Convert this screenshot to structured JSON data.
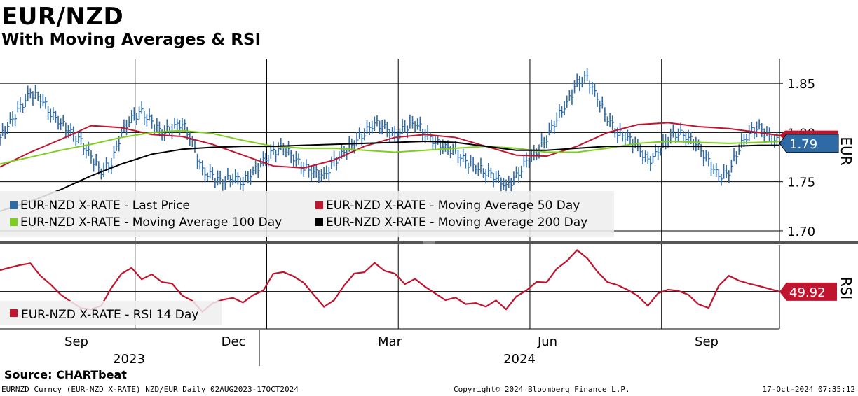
{
  "header": {
    "title": "EUR/NZD",
    "subtitle": "With Moving Averages & RSI"
  },
  "source": "Source: CHARTbeat",
  "footer": {
    "left": "EURNZD Curncy (EUR-NZD X-RATE) NZD/EUR  Daily 02AUG2023-17OCT2024",
    "middle": "Copyright© 2024 Bloomberg Finance L.P.",
    "right": "17-Oct-2024 07:35:12"
  },
  "colors": {
    "price": "#2e6aa5",
    "ma50": "#c0152f",
    "ma100": "#7dce1e",
    "ma200": "#000000",
    "rsi": "#c0152f",
    "legend_bg": "#eeeeee",
    "divider": "#555555"
  },
  "chart_data": [
    {
      "type": "line",
      "title": "EUR-NZD price panel",
      "y_axis_label": "EUR",
      "ylim": [
        1.69,
        1.875
      ],
      "y_ticks": [
        1.7,
        1.75,
        1.8,
        1.85
      ],
      "y_tick_labels": [
        "1.70",
        "1.75",
        "1.80",
        "1.85"
      ],
      "x_month_labels": [
        "Sep",
        "Dec",
        "Mar",
        "Jun",
        "Sep"
      ],
      "x_year_labels": [
        "2023",
        "2024"
      ],
      "x_range_days": [
        0,
        77
      ],
      "x_month_positions_days": [
        0,
        13,
        26,
        39,
        52,
        65
      ],
      "last_value_tags": [
        {
          "series": "Moving Average 50 Day",
          "label": "",
          "value": 1.797
        },
        {
          "series": "Last Price",
          "label": "1.79",
          "value": 1.789
        }
      ],
      "series": [
        {
          "name": "EUR-NZD X-RATE - Last Price",
          "legend": "EUR-NZD X-RATE - Last Price",
          "style": "ohlc-bars",
          "x": [
            0,
            1,
            2,
            3,
            4,
            5,
            6,
            7,
            8,
            9,
            10,
            11,
            12,
            13,
            14,
            15,
            16,
            17,
            18,
            19,
            20,
            21,
            22,
            23,
            24,
            25,
            26,
            27,
            28,
            29,
            30,
            31,
            32,
            33,
            34,
            35,
            36,
            37,
            38,
            39,
            40,
            41,
            42,
            43,
            44,
            45,
            46,
            47,
            48,
            49,
            50,
            51,
            52,
            53,
            54,
            55,
            56,
            57,
            58,
            59,
            60,
            61,
            62,
            63,
            64,
            65,
            66,
            67,
            68,
            69,
            70,
            71,
            72,
            73,
            74,
            75,
            76,
            77
          ],
          "values": [
            1.795,
            1.81,
            1.825,
            1.84,
            1.835,
            1.82,
            1.81,
            1.8,
            1.79,
            1.775,
            1.76,
            1.77,
            1.8,
            1.815,
            1.82,
            1.81,
            1.8,
            1.805,
            1.81,
            1.79,
            1.76,
            1.755,
            1.75,
            1.755,
            1.75,
            1.76,
            1.77,
            1.78,
            1.785,
            1.775,
            1.765,
            1.76,
            1.755,
            1.77,
            1.78,
            1.79,
            1.8,
            1.81,
            1.805,
            1.795,
            1.805,
            1.81,
            1.8,
            1.79,
            1.785,
            1.78,
            1.77,
            1.765,
            1.76,
            1.755,
            1.745,
            1.755,
            1.77,
            1.78,
            1.795,
            1.815,
            1.83,
            1.85,
            1.855,
            1.835,
            1.815,
            1.8,
            1.795,
            1.785,
            1.77,
            1.78,
            1.795,
            1.8,
            1.795,
            1.785,
            1.77,
            1.755,
            1.76,
            1.785,
            1.8,
            1.805,
            1.795,
            1.79
          ]
        },
        {
          "name": "EUR-NZD X-RATE - Moving Average 50 Day",
          "legend": "EUR-NZD X-RATE - Moving Average 50 Day",
          "style": "line",
          "x": [
            0,
            3,
            6,
            9,
            12,
            15,
            18,
            21,
            24,
            27,
            30,
            33,
            36,
            39,
            42,
            45,
            48,
            51,
            54,
            57,
            60,
            63,
            66,
            69,
            72,
            75,
            77
          ],
          "values": [
            1.765,
            1.78,
            1.793,
            1.807,
            1.805,
            1.798,
            1.796,
            1.788,
            1.777,
            1.766,
            1.764,
            1.772,
            1.786,
            1.795,
            1.798,
            1.795,
            1.786,
            1.777,
            1.776,
            1.786,
            1.8,
            1.808,
            1.81,
            1.806,
            1.804,
            1.8,
            1.797
          ]
        },
        {
          "name": "EUR-NZD X-RATE - Moving Average 100 Day",
          "legend": "EUR-NZD X-RATE - Moving Average 100 Day",
          "style": "line",
          "x": [
            0,
            3,
            6,
            9,
            12,
            15,
            18,
            21,
            24,
            27,
            30,
            33,
            36,
            39,
            42,
            45,
            48,
            51,
            54,
            57,
            60,
            63,
            66,
            69,
            72,
            75,
            77
          ],
          "values": [
            1.768,
            1.775,
            1.782,
            1.788,
            1.795,
            1.8,
            1.802,
            1.799,
            1.792,
            1.786,
            1.784,
            1.784,
            1.782,
            1.78,
            1.782,
            1.784,
            1.786,
            1.784,
            1.78,
            1.78,
            1.784,
            1.789,
            1.791,
            1.79,
            1.789,
            1.79,
            1.791
          ]
        },
        {
          "name": "EUR-NZD X-RATE - Moving Average 200 Day",
          "legend": "EUR-NZD X-RATE - Moving Average 200 Day",
          "style": "line",
          "x": [
            0,
            3,
            6,
            9,
            12,
            15,
            18,
            21,
            24,
            27,
            30,
            33,
            36,
            39,
            42,
            45,
            48,
            51,
            54,
            57,
            60,
            63,
            66,
            69,
            72,
            75,
            77
          ],
          "values": [
            1.72,
            1.73,
            1.742,
            1.756,
            1.768,
            1.778,
            1.783,
            1.785,
            1.786,
            1.786,
            1.787,
            1.788,
            1.789,
            1.79,
            1.791,
            1.79,
            1.786,
            1.782,
            1.782,
            1.784,
            1.786,
            1.786,
            1.786,
            1.786,
            1.786,
            1.787,
            1.787
          ]
        }
      ]
    },
    {
      "type": "line",
      "title": "RSI panel",
      "y_axis_label": "RSI",
      "ylim": [
        22,
        85
      ],
      "reference_line": 50,
      "last_value_tag": {
        "label": "49.92",
        "value": 49.92
      },
      "series": [
        {
          "name": "EUR-NZD X-RATE - RSI 14 Day",
          "legend": "EUR-NZD X-RATE - RSI 14 Day",
          "x": [
            0,
            1,
            2,
            3,
            4,
            5,
            6,
            7,
            8,
            9,
            10,
            11,
            12,
            13,
            14,
            15,
            16,
            17,
            18,
            19,
            20,
            21,
            22,
            23,
            24,
            25,
            26,
            27,
            28,
            29,
            30,
            31,
            32,
            33,
            34,
            35,
            36,
            37,
            38,
            39,
            40,
            41,
            42,
            43,
            44,
            45,
            46,
            47,
            48,
            49,
            50,
            51,
            52,
            53,
            54,
            55,
            56,
            57,
            58,
            59,
            60,
            61,
            62,
            63,
            64,
            65,
            66,
            67,
            68,
            69,
            70,
            71,
            72,
            73,
            74,
            75,
            76,
            77
          ],
          "values": [
            66,
            68,
            70,
            71,
            62,
            55,
            48,
            42,
            38,
            36,
            40,
            52,
            64,
            67,
            60,
            62,
            58,
            55,
            48,
            42,
            36,
            40,
            45,
            44,
            43,
            46,
            52,
            62,
            66,
            60,
            58,
            46,
            40,
            42,
            56,
            62,
            66,
            70,
            67,
            62,
            57,
            58,
            55,
            47,
            45,
            44,
            42,
            40,
            40,
            42,
            38,
            45,
            52,
            56,
            58,
            66,
            74,
            80,
            76,
            64,
            58,
            54,
            52,
            46,
            40,
            48,
            52,
            50,
            48,
            40,
            38,
            54,
            62,
            58,
            56,
            54,
            52,
            50
          ]
        }
      ]
    }
  ]
}
